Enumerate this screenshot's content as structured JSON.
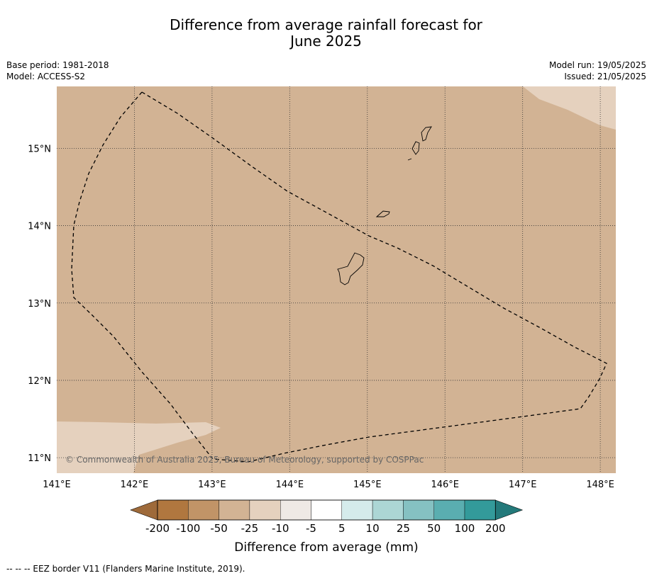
{
  "title": {
    "line1": "Difference from average rainfall forecast for",
    "line2": "June 2025"
  },
  "meta_left": {
    "base_period": "Base period: 1981-2018",
    "model": "Model: ACCESS-S2"
  },
  "meta_right": {
    "model_run": "Model run: 19/05/2025",
    "issued": "Issued: 21/05/2025"
  },
  "map": {
    "lon_range": [
      141,
      148.2
    ],
    "lat_range": [
      10.8,
      15.8
    ],
    "x_ticks": [
      "141°E",
      "142°E",
      "143°E",
      "144°E",
      "145°E",
      "146°E",
      "147°E",
      "148°E"
    ],
    "y_ticks": [
      "15°N",
      "14°N",
      "13°N",
      "12°N",
      "11°N"
    ],
    "gridlines": true,
    "background_class_color": "#d2b394",
    "light_class_color": "#e5d1be",
    "copyright": "© Commonwealth of Australia 2025, Bureau of Meteorology, supported by COSPPac"
  },
  "colorbar": {
    "label": "Difference from average (mm)",
    "ticks": [
      "-200",
      "-100",
      "-50",
      "-25",
      "-10",
      "-5",
      "5",
      "10",
      "25",
      "50",
      "100",
      "200"
    ],
    "colors": [
      "#9e6a3a",
      "#b0773f",
      "#c19467",
      "#d2b394",
      "#e5d1be",
      "#efe9e5",
      "#ffffff",
      "#d5ebeb",
      "#acd6d5",
      "#85c1c2",
      "#5aaeb0",
      "#339a9a",
      "#23797a"
    ]
  },
  "footer": "--  --  -- EEZ border V11 (Flanders Marine Institute, 2019)."
}
